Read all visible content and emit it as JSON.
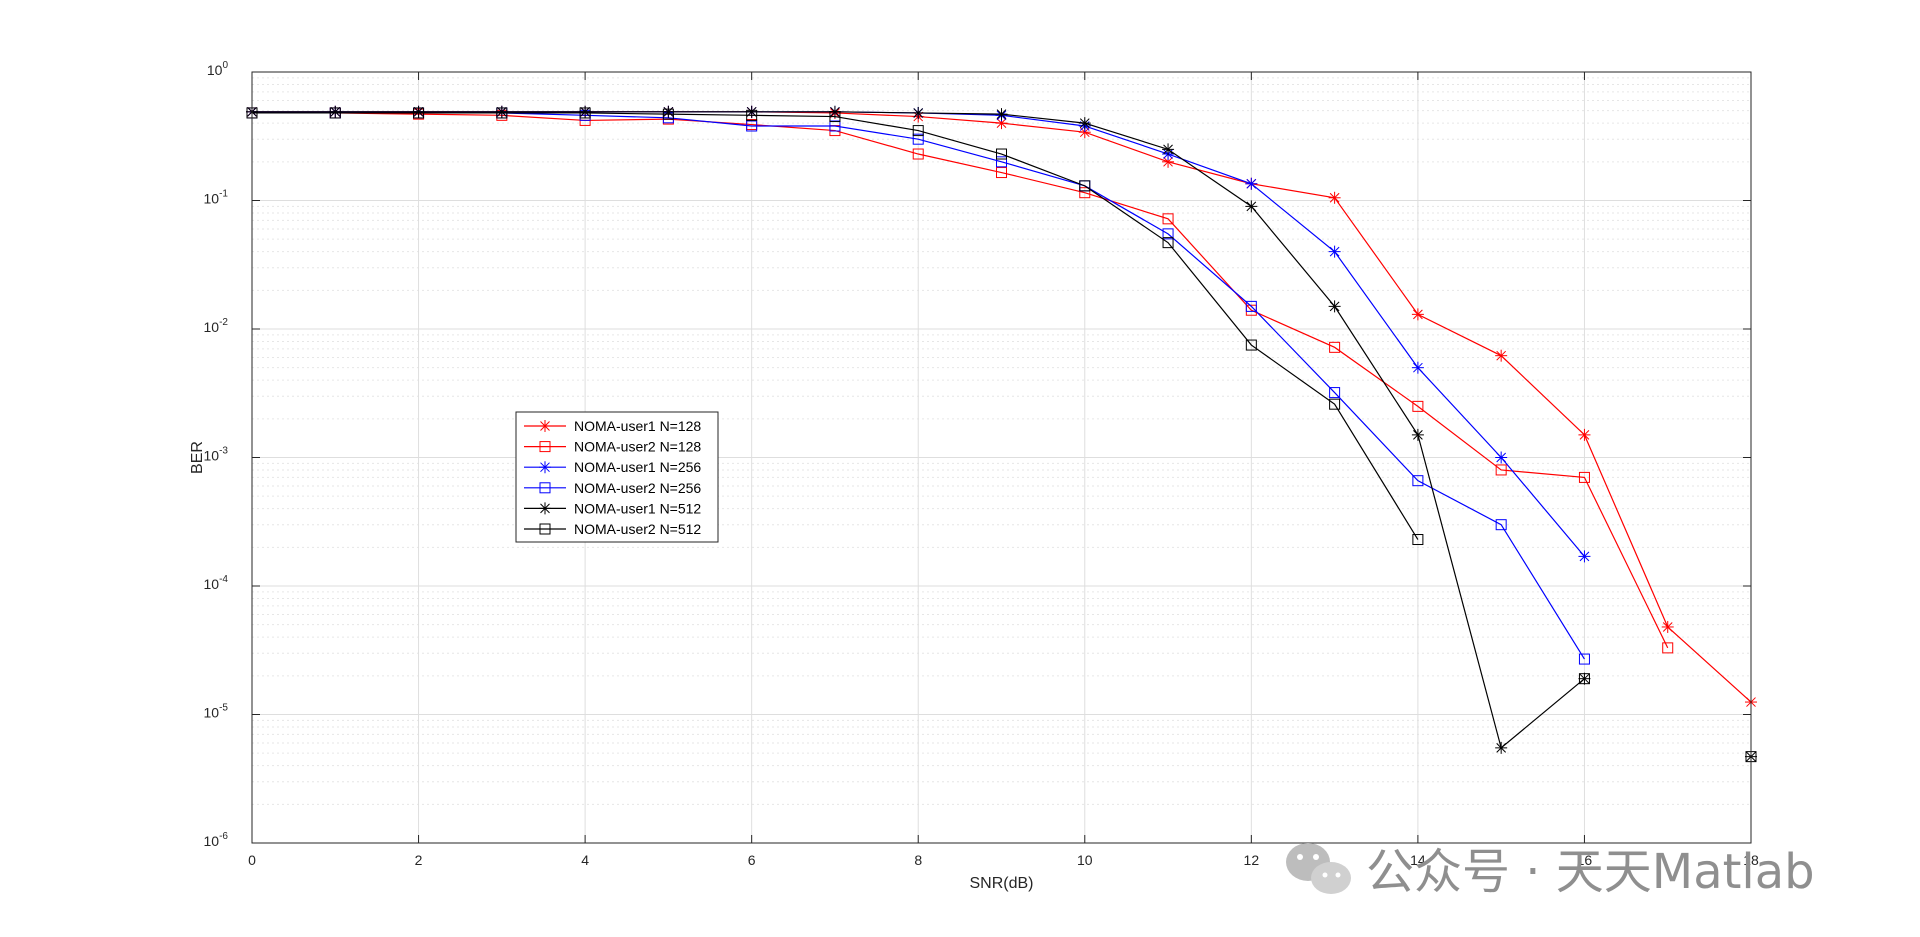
{
  "chart_data": {
    "type": "line",
    "title": "",
    "xlabel": "SNR(dB)",
    "ylabel": "BER",
    "xlim": [
      0,
      18
    ],
    "ylim": [
      1e-06,
      1
    ],
    "yscale": "log",
    "x_ticks": [
      "0",
      "2",
      "4",
      "6",
      "8",
      "10",
      "12",
      "14",
      "16",
      "18"
    ],
    "y_ticks": [
      {
        "base": "10",
        "exp": "-6"
      },
      {
        "base": "10",
        "exp": "-5"
      },
      {
        "base": "10",
        "exp": "-4"
      },
      {
        "base": "10",
        "exp": "-3"
      },
      {
        "base": "10",
        "exp": "-2"
      },
      {
        "base": "10",
        "exp": "-1"
      },
      {
        "base": "10",
        "exp": "0"
      }
    ],
    "grid": true,
    "minor_grid": true,
    "legend_position": "left-middle",
    "series": [
      {
        "name": "NOMA-user1 N=128",
        "color": "#ff0000",
        "marker": "star",
        "x": [
          0,
          1,
          2,
          3,
          4,
          5,
          6,
          7,
          8,
          9,
          10,
          11,
          12,
          13,
          14,
          15,
          16,
          17,
          18
        ],
        "y": [
          0.49,
          0.49,
          0.49,
          0.49,
          0.49,
          0.49,
          0.49,
          0.48,
          0.45,
          0.4,
          0.34,
          0.2,
          0.135,
          0.105,
          0.013,
          0.0062,
          0.0015,
          4.8e-05,
          1.25e-05
        ]
      },
      {
        "name": "NOMA-user2 N=128",
        "color": "#ff0000",
        "marker": "square",
        "x": [
          0,
          1,
          2,
          3,
          4,
          5,
          6,
          7,
          8,
          9,
          10,
          11,
          12,
          13,
          14,
          15,
          16,
          17
        ],
        "y": [
          0.48,
          0.48,
          0.47,
          0.46,
          0.42,
          0.43,
          0.39,
          0.35,
          0.23,
          0.165,
          0.115,
          0.072,
          0.014,
          0.0072,
          0.0025,
          0.0008,
          0.0007,
          3.3e-05
        ]
      },
      {
        "name": "NOMA-user1 N=256",
        "color": "#0000ff",
        "marker": "star",
        "x": [
          0,
          1,
          2,
          3,
          4,
          5,
          6,
          7,
          8,
          9,
          10,
          11,
          12,
          13,
          14,
          15,
          16
        ],
        "y": [
          0.49,
          0.49,
          0.49,
          0.49,
          0.49,
          0.49,
          0.49,
          0.49,
          0.48,
          0.46,
          0.38,
          0.23,
          0.135,
          0.04,
          0.005,
          0.001,
          0.00017
        ]
      },
      {
        "name": "NOMA-user2 N=256",
        "color": "#0000ff",
        "marker": "square",
        "x": [
          0,
          1,
          2,
          3,
          4,
          5,
          6,
          7,
          8,
          9,
          10,
          11,
          12,
          13,
          14,
          15,
          16
        ],
        "y": [
          0.48,
          0.48,
          0.48,
          0.48,
          0.46,
          0.44,
          0.38,
          0.38,
          0.3,
          0.2,
          0.13,
          0.055,
          0.015,
          0.0032,
          0.00066,
          0.0003,
          2.7e-05
        ]
      },
      {
        "name": "NOMA-user1 N=512",
        "color": "#000000",
        "marker": "star",
        "x": [
          0,
          1,
          2,
          3,
          4,
          5,
          6,
          7,
          8,
          9,
          10,
          11,
          12,
          13,
          14,
          15,
          16
        ],
        "y": [
          0.49,
          0.49,
          0.49,
          0.49,
          0.49,
          0.49,
          0.49,
          0.49,
          0.48,
          0.47,
          0.4,
          0.25,
          0.09,
          0.015,
          0.0015,
          5.5e-06,
          1.9e-05
        ]
      },
      {
        "name": "NOMA-user2 N=512",
        "color": "#000000",
        "marker": "square",
        "x": [
          0,
          1,
          2,
          3,
          4,
          5,
          6,
          7,
          8,
          9,
          10,
          11,
          12,
          13,
          14
        ],
        "y": [
          0.48,
          0.48,
          0.48,
          0.48,
          0.48,
          0.47,
          0.46,
          0.45,
          0.35,
          0.23,
          0.13,
          0.047,
          0.0075,
          0.0026,
          0.00023
        ]
      }
    ],
    "extra_points": [
      {
        "x": 16,
        "y": 1.9e-05,
        "color": "#000000",
        "marker": "square"
      },
      {
        "x": 18,
        "y": 4.7e-06,
        "color": "#000000",
        "marker": "star"
      },
      {
        "x": 18,
        "y": 4.7e-06,
        "color": "#000000",
        "marker": "square"
      }
    ]
  },
  "watermark": {
    "text": "公众号 · 天天Matlab",
    "icon": "wechat-icon"
  }
}
